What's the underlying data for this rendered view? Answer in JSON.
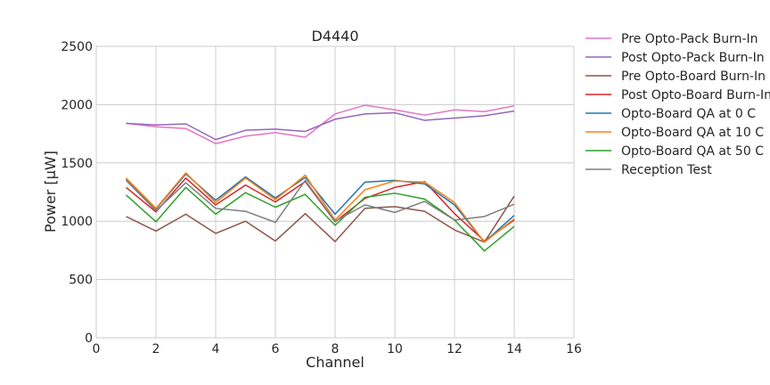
{
  "chart_data": {
    "type": "line",
    "title": "D4440",
    "xlabel": "Channel",
    "ylabel": "Power [µW]",
    "xlim": [
      0,
      16
    ],
    "ylim": [
      0,
      2500
    ],
    "xticks": [
      0,
      2,
      4,
      6,
      8,
      10,
      12,
      14,
      16
    ],
    "yticks": [
      0,
      500,
      1000,
      1500,
      2000,
      2500
    ],
    "grid": true,
    "legend_position": "outside-right",
    "x": [
      1,
      2,
      3,
      4,
      5,
      6,
      7,
      8,
      9,
      10,
      11,
      12,
      13,
      14
    ],
    "series": [
      {
        "name": "Pre Opto-Pack Burn-In",
        "color": "#e377c2",
        "values": [
          1840,
          1810,
          1795,
          1665,
          1730,
          1760,
          1720,
          1920,
          1995,
          1955,
          1910,
          1955,
          1940,
          1990
        ]
      },
      {
        "name": "Post Opto-Pack Burn-In",
        "color": "#9467bd",
        "values": [
          1840,
          1825,
          1835,
          1700,
          1780,
          1790,
          1770,
          1875,
          1920,
          1930,
          1865,
          1885,
          1905,
          1945
        ]
      },
      {
        "name": "Pre Opto-Board Burn-In",
        "color": "#8c564b",
        "values": [
          1040,
          915,
          1060,
          895,
          1000,
          830,
          1065,
          825,
          1110,
          1125,
          1085,
          925,
          820,
          1215
        ]
      },
      {
        "name": "Post Opto-Board Burn-In",
        "color": "#d62728",
        "values": [
          1290,
          1080,
          1370,
          1140,
          1310,
          1165,
          1340,
          995,
          1195,
          1290,
          1340,
          1065,
          830,
          1010
        ]
      },
      {
        "name": "Opto-Board QA at 0 C",
        "color": "#1f77b4",
        "values": [
          1360,
          1105,
          1405,
          1180,
          1380,
          1200,
          1375,
          1060,
          1335,
          1350,
          1320,
          1140,
          820,
          1050
        ]
      },
      {
        "name": "Opto-Board QA at 10 C",
        "color": "#ff7f0e",
        "values": [
          1370,
          1110,
          1415,
          1160,
          1370,
          1185,
          1395,
          1010,
          1270,
          1345,
          1335,
          1160,
          820,
          1020
        ]
      },
      {
        "name": "Opto-Board QA at 50 C",
        "color": "#2ca02c",
        "values": [
          1225,
          995,
          1290,
          1060,
          1245,
          1120,
          1230,
          965,
          1205,
          1240,
          1190,
          1010,
          745,
          955
        ]
      },
      {
        "name": "Reception Test",
        "color": "#7f7f7f",
        "values": [
          1350,
          1090,
          1330,
          1110,
          1085,
          990,
          1350,
          1000,
          1140,
          1075,
          1170,
          1010,
          1040,
          1145
        ]
      }
    ]
  }
}
